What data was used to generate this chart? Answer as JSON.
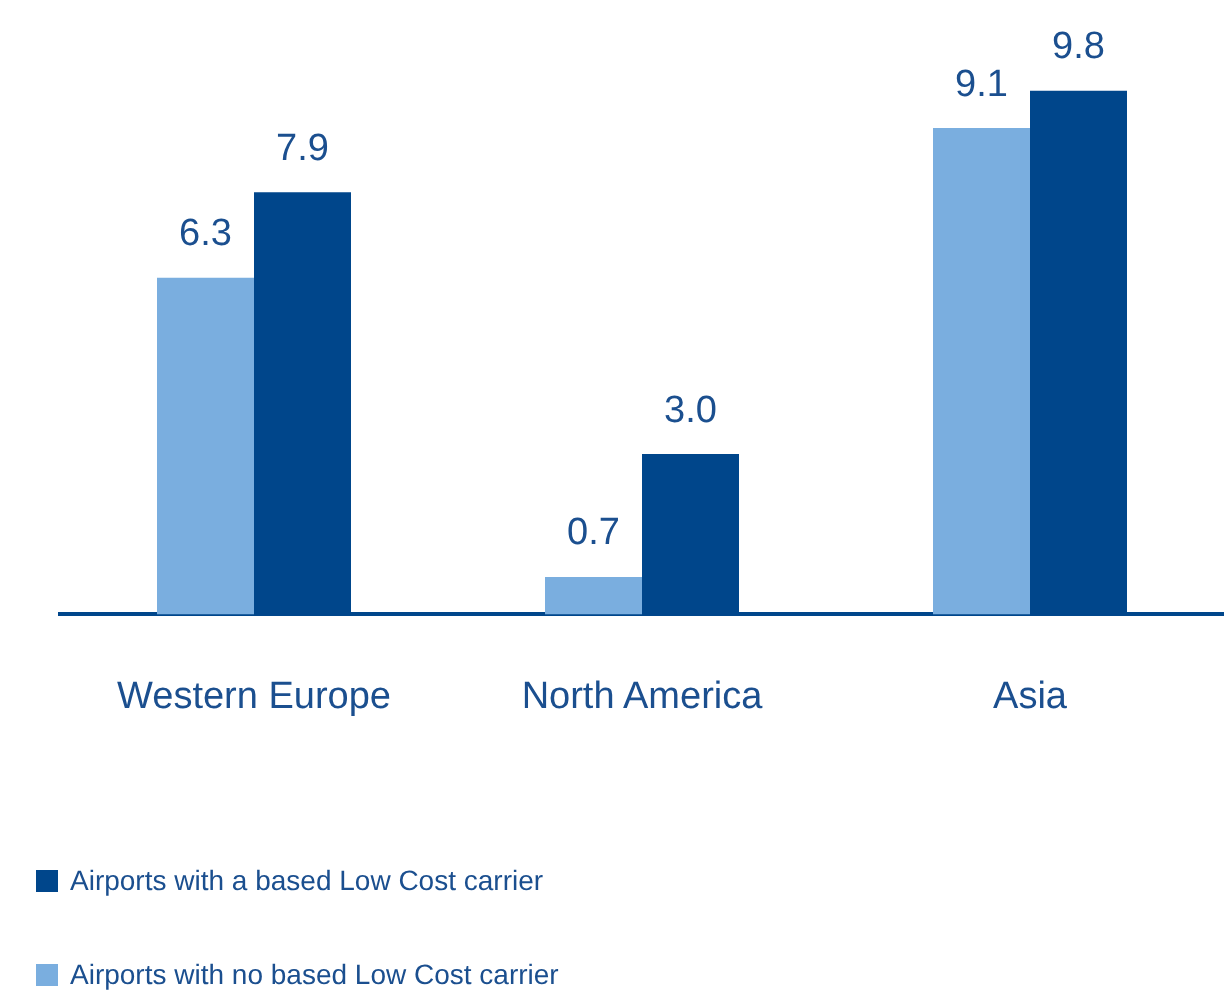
{
  "chart_data": {
    "type": "bar",
    "categories": [
      "Western Europe",
      "North America",
      "Asia"
    ],
    "series": [
      {
        "name": "Airports with no based Low Cost carrier",
        "color": "#7aaedf",
        "values": [
          6.3,
          0.7,
          9.1
        ],
        "value_labels": [
          "6.3",
          "0.7",
          "9.1"
        ]
      },
      {
        "name": "Airports with a based Low Cost carrier",
        "color": "#00468b",
        "values": [
          7.9,
          3.0,
          9.8
        ],
        "value_labels": [
          "7.9",
          "3.0",
          "9.8"
        ]
      }
    ],
    "legend": "bottom",
    "grid": false,
    "tick_labels": "x"
  }
}
